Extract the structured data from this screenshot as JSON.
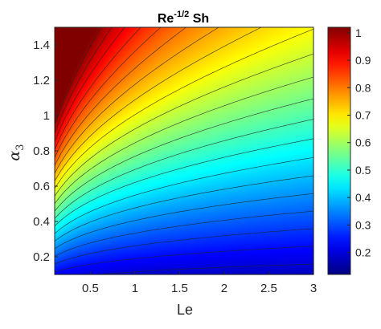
{
  "chart_data": {
    "type": "heatmap",
    "title": {
      "main": "Re",
      "superscript": "-1/2",
      "suffix": " Sh"
    },
    "xlabel": "Le",
    "ylabel": {
      "symbol": "α",
      "subscript": "3"
    },
    "xlim": [
      0.1,
      3
    ],
    "ylim": [
      0.1,
      1.5
    ],
    "x_ticks": [
      0.5,
      1,
      1.5,
      2,
      2.5,
      3
    ],
    "x_tick_labels": [
      "0.5",
      "1",
      "1.5",
      "2",
      "2.5",
      "3"
    ],
    "y_ticks": [
      0.2,
      0.4,
      0.6,
      0.8,
      1,
      1.2,
      1.4
    ],
    "y_tick_labels": [
      "0.2",
      "0.4",
      "0.6",
      "0.8",
      "1",
      "1.2",
      "1.4"
    ],
    "colorbar": {
      "colormap": "jet",
      "range": [
        0.12,
        1.02
      ],
      "ticks": [
        0.2,
        0.3,
        0.4,
        0.5,
        0.6,
        0.7,
        0.8,
        0.9,
        1
      ],
      "tick_labels": [
        "0.2",
        "0.3",
        "0.4",
        "0.5",
        "0.6",
        "0.7",
        "0.8",
        "0.9",
        "1"
      ],
      "placement": "right"
    },
    "contour_lines": true,
    "contour_line_color": "#222222",
    "grid": false
  }
}
